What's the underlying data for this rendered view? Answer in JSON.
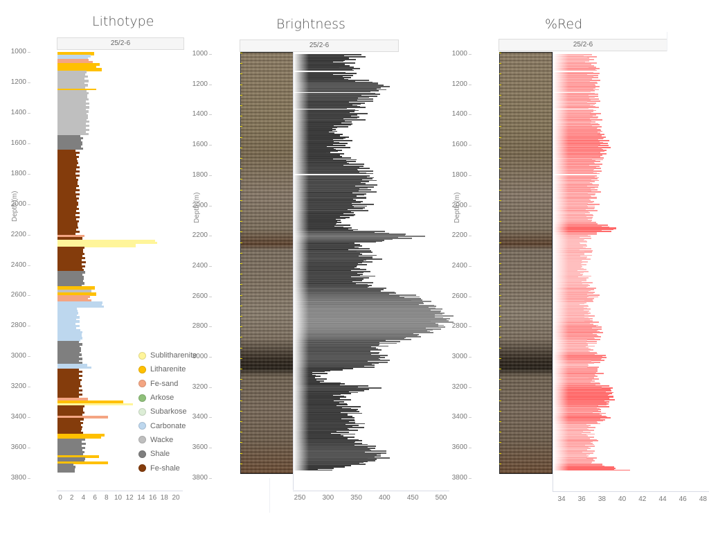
{
  "panels": [
    {
      "id": "lithotype",
      "title": "Lithotype",
      "well": "25/2-6",
      "ylabel": "Depth (m)",
      "yticks": [
        "1000",
        "1200",
        "1400",
        "1600",
        "1800",
        "2000",
        "2200",
        "2400",
        "2600",
        "2800",
        "3000",
        "3200",
        "3400",
        "3600",
        "3800"
      ],
      "xticks": [
        "0",
        "2",
        "4",
        "6",
        "8",
        "10",
        "12",
        "14",
        "16",
        "18",
        "20"
      ]
    },
    {
      "id": "brightness",
      "title": "Brightness",
      "well": "25/2-6",
      "ylabel": "Depth (m)",
      "yticks": [
        "1000",
        "1200",
        "1400",
        "1600",
        "1800",
        "2000",
        "2200",
        "2400",
        "2600",
        "2800",
        "3000",
        "3200",
        "3400",
        "3600",
        "3800"
      ],
      "xticks": [
        "250",
        "300",
        "350",
        "400",
        "450",
        "500"
      ]
    },
    {
      "id": "red",
      "title": "%Red",
      "well": "25/2-6",
      "ylabel": "Depth (m)",
      "yticks": [
        "1000",
        "1200",
        "1400",
        "1600",
        "1800",
        "2000",
        "2200",
        "2400",
        "2600",
        "2800",
        "3000",
        "3200",
        "3400",
        "3600",
        "3800"
      ],
      "xticks": [
        "34",
        "36",
        "38",
        "40",
        "42",
        "44",
        "46",
        "48"
      ]
    }
  ],
  "legend": [
    {
      "label": "Sublitharenite",
      "color": "#fff59a"
    },
    {
      "label": "Litharenite",
      "color": "#ffc000"
    },
    {
      "label": "Fe-sand",
      "color": "#f4a582"
    },
    {
      "label": "Arkose",
      "color": "#8fc07a"
    },
    {
      "label": "Subarkose",
      "color": "#dcedd6"
    },
    {
      "label": "Carbonate",
      "color": "#bdd7ee"
    },
    {
      "label": "Wacke",
      "color": "#bfbfbf"
    },
    {
      "label": "Shale",
      "color": "#7f7f7f"
    },
    {
      "label": "Fe-shale",
      "color": "#843c0c"
    }
  ],
  "chart_data": [
    {
      "type": "bar",
      "title": "Lithotype",
      "subtitle": "25/2-6",
      "orientation": "horizontal",
      "xlabel": "",
      "ylabel": "Depth (m)",
      "xlim": [
        0,
        21
      ],
      "ylim": [
        3850,
        1000
      ],
      "legend": [
        "Sublitharenite",
        "Litharenite",
        "Fe-sand",
        "Arkose",
        "Subarkose",
        "Carbonate",
        "Wacke",
        "Shale",
        "Fe-shale"
      ],
      "legend_position": "inside-right",
      "intervals": [
        {
          "top": 1000,
          "base": 1020,
          "class": "Litharenite",
          "value": 6.2
        },
        {
          "top": 1020,
          "base": 1045,
          "class": "Carbonate",
          "value": 5.5
        },
        {
          "top": 1045,
          "base": 1060,
          "class": "Fe-sand",
          "value": 5.0
        },
        {
          "top": 1060,
          "base": 1075,
          "class": "Fe-sand",
          "value": 5.8
        },
        {
          "top": 1075,
          "base": 1105,
          "class": "Litharenite",
          "value": 7.0
        },
        {
          "top": 1105,
          "base": 1125,
          "class": "Litharenite",
          "value": 7.5
        },
        {
          "top": 1125,
          "base": 1240,
          "class": "Wacke",
          "value": 5.0
        },
        {
          "top": 1240,
          "base": 1250,
          "class": "Litharenite",
          "value": 6.8
        },
        {
          "top": 1250,
          "base": 1545,
          "class": "Wacke",
          "value": 5.2
        },
        {
          "top": 1545,
          "base": 1640,
          "class": "Shale",
          "value": 4.2
        },
        {
          "top": 1640,
          "base": 2200,
          "class": "Fe-shale",
          "value": 3.5
        },
        {
          "top": 2200,
          "base": 2215,
          "class": "Fe-sand",
          "value": 5.0
        },
        {
          "top": 2215,
          "base": 2235,
          "class": "Fe-shale",
          "value": 4.5
        },
        {
          "top": 2235,
          "base": 2260,
          "class": "Sublitharenite",
          "value": 17.0
        },
        {
          "top": 2260,
          "base": 2280,
          "class": "Sublitharenite",
          "value": 13.5
        },
        {
          "top": 2280,
          "base": 2440,
          "class": "Fe-shale",
          "value": 4.5
        },
        {
          "top": 2440,
          "base": 2540,
          "class": "Shale",
          "value": 4.5
        },
        {
          "top": 2540,
          "base": 2560,
          "class": "Litharenite",
          "value": 6.2
        },
        {
          "top": 2560,
          "base": 2580,
          "class": "Wacke",
          "value": 5.5
        },
        {
          "top": 2580,
          "base": 2600,
          "class": "Litharenite",
          "value": 6.5
        },
        {
          "top": 2600,
          "base": 2640,
          "class": "Fe-sand",
          "value": 5.5
        },
        {
          "top": 2640,
          "base": 2680,
          "class": "Carbonate",
          "value": 7.8
        },
        {
          "top": 2680,
          "base": 2820,
          "class": "Carbonate",
          "value": 3.5
        },
        {
          "top": 2820,
          "base": 2900,
          "class": "Carbonate",
          "value": 4.2
        },
        {
          "top": 2900,
          "base": 3050,
          "class": "Shale",
          "value": 4.0
        },
        {
          "top": 3050,
          "base": 3080,
          "class": "Carbonate",
          "value": 5.5
        },
        {
          "top": 3080,
          "base": 3270,
          "class": "Fe-shale",
          "value": 4.0
        },
        {
          "top": 3270,
          "base": 3290,
          "class": "Fe-sand",
          "value": 5.5
        },
        {
          "top": 3290,
          "base": 3310,
          "class": "Litharenite",
          "value": 11.5
        },
        {
          "top": 3310,
          "base": 3320,
          "class": "Sublitharenite",
          "value": 13.0
        },
        {
          "top": 3320,
          "base": 3390,
          "class": "Fe-shale",
          "value": 4.5
        },
        {
          "top": 3390,
          "base": 3405,
          "class": "Fe-sand",
          "value": 8.5
        },
        {
          "top": 3405,
          "base": 3510,
          "class": "Fe-shale",
          "value": 4.2
        },
        {
          "top": 3510,
          "base": 3540,
          "class": "Litharenite",
          "value": 7.8
        },
        {
          "top": 3540,
          "base": 3650,
          "class": "Shale",
          "value": 4.5
        },
        {
          "top": 3650,
          "base": 3665,
          "class": "Litharenite",
          "value": 7.0
        },
        {
          "top": 3665,
          "base": 3690,
          "class": "Shale",
          "value": 4.8
        },
        {
          "top": 3690,
          "base": 3705,
          "class": "Litharenite",
          "value": 8.8
        },
        {
          "top": 3705,
          "base": 3760,
          "class": "Shale",
          "value": 3.0
        }
      ]
    },
    {
      "type": "bar",
      "title": "Brightness",
      "subtitle": "25/2-6",
      "orientation": "horizontal",
      "xlabel": "",
      "ylabel": "Depth (m)",
      "xlim": [
        236,
        505
      ],
      "ylim": [
        3850,
        1000
      ],
      "series": [
        {
          "name": "Brightness",
          "depth": [
            1000,
            1050,
            1100,
            1150,
            1200,
            1250,
            1300,
            1350,
            1400,
            1450,
            1500,
            1550,
            1600,
            1650,
            1700,
            1750,
            1800,
            1850,
            1900,
            1950,
            2000,
            2050,
            2100,
            2150,
            2200,
            2250,
            2300,
            2350,
            2400,
            2450,
            2500,
            2550,
            2600,
            2650,
            2700,
            2750,
            2800,
            2850,
            2900,
            2950,
            3000,
            3050,
            3100,
            3150,
            3200,
            3250,
            3300,
            3350,
            3400,
            3450,
            3500,
            3550,
            3600,
            3650,
            3700,
            3750
          ],
          "values": [
            345,
            325,
            335,
            320,
            395,
            380,
            355,
            340,
            345,
            335,
            300,
            320,
            315,
            310,
            330,
            350,
            370,
            365,
            360,
            345,
            355,
            340,
            310,
            325,
            450,
            345,
            355,
            370,
            345,
            360,
            350,
            380,
            440,
            470,
            490,
            495,
            485,
            460,
            400,
            370,
            390,
            380,
            280,
            270,
            370,
            320,
            320,
            340,
            330,
            350,
            320,
            340,
            370,
            390,
            360,
            270
          ]
        }
      ]
    },
    {
      "type": "bar",
      "title": "%Red",
      "subtitle": "25/2-6",
      "orientation": "horizontal",
      "xlabel": "",
      "ylabel": "Depth (m)",
      "xlim": [
        33.2,
        48.5
      ],
      "ylim": [
        3850,
        1000
      ],
      "series": [
        {
          "name": "%Red",
          "depth": [
            1000,
            1050,
            1100,
            1150,
            1200,
            1250,
            1300,
            1350,
            1400,
            1450,
            1500,
            1550,
            1600,
            1650,
            1700,
            1750,
            1800,
            1850,
            1900,
            1950,
            2000,
            2050,
            2100,
            2150,
            2200,
            2250,
            2300,
            2350,
            2400,
            2450,
            2500,
            2550,
            2600,
            2650,
            2700,
            2750,
            2800,
            2850,
            2900,
            2950,
            3000,
            3050,
            3100,
            3150,
            3200,
            3250,
            3300,
            3350,
            3400,
            3450,
            3500,
            3550,
            3600,
            3650,
            3700,
            3750
          ],
          "values": [
            36.8,
            37.0,
            37.3,
            37.2,
            37.5,
            37.3,
            37.2,
            37.1,
            37.4,
            37.4,
            37.8,
            38.0,
            38.3,
            38.2,
            37.5,
            37.4,
            37.6,
            37.2,
            37.3,
            37.0,
            37.1,
            36.9,
            36.9,
            39.3,
            36.5,
            36.3,
            36.6,
            36.3,
            36.1,
            36.3,
            36.4,
            36.9,
            37.2,
            36.4,
            36.7,
            36.7,
            37.6,
            37.8,
            37.0,
            36.6,
            38.4,
            36.8,
            37.8,
            36.9,
            38.5,
            39.1,
            38.6,
            37.5,
            38.5,
            37.0,
            36.6,
            37.2,
            36.7,
            36.8,
            37.3,
            40.5
          ]
        }
      ]
    }
  ]
}
